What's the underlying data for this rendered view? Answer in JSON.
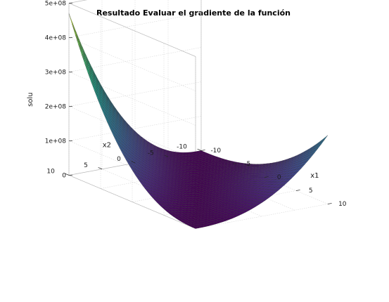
{
  "chart_data": {
    "type": "surface",
    "title": "Resultado Evaluar el gradiente de la función",
    "xlabel": "x1",
    "ylabel": "x2",
    "zlabel": "solu",
    "xlim": [
      -10,
      10
    ],
    "ylim": [
      -10,
      10
    ],
    "zlim": [
      0,
      500000000
    ],
    "xticks": [
      -10,
      -5,
      0,
      5,
      10
    ],
    "yticks": [
      -10,
      -5,
      0,
      5,
      10
    ],
    "zticks": [
      0,
      100000000,
      200000000,
      300000000,
      400000000,
      500000000
    ],
    "x_tick_labels": [
      "-10",
      "-5",
      "0",
      "5",
      "10"
    ],
    "y_tick_labels": [
      "-10",
      "-5",
      "0",
      "5",
      "10"
    ],
    "z_tick_labels": [
      "0",
      "1e+08",
      "2e+08",
      "3e+08",
      "4e+08",
      "5e+08"
    ],
    "colormap": "viridis",
    "grid": true,
    "grid_points": 41,
    "corner_values": [
      {
        "x1": -10,
        "x2": -10,
        "solu": 0
      },
      {
        "x1": 10,
        "x2": 10,
        "solu": 0
      },
      {
        "x1": 10,
        "x2": -10,
        "solu": 200000000
      },
      {
        "x1": -10,
        "x2": 10,
        "solu": 470000000
      }
    ]
  }
}
